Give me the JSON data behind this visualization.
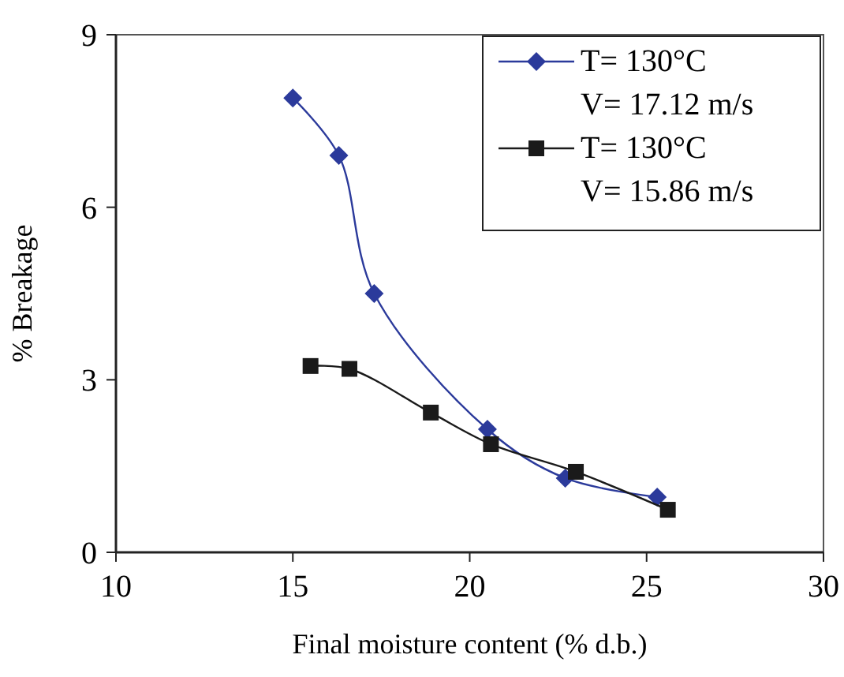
{
  "chart_data": {
    "type": "line",
    "xlabel": "Final moisture content (% d.b.)",
    "ylabel": "% Breakage",
    "xlim": [
      10,
      30
    ],
    "xticks": [
      10,
      15,
      20,
      25,
      30
    ],
    "ylim": [
      0,
      9
    ],
    "yticks": [
      0,
      3,
      6,
      9
    ],
    "grid": false,
    "legend": "top right",
    "line_style": "solid",
    "series": [
      {
        "name": "T= 130°C\nV= 17.12 m/s",
        "color": "#2b3a9b",
        "marker": "diamond",
        "x": [
          15.0,
          16.3,
          17.3,
          20.5,
          22.7,
          25.3
        ],
        "values": [
          7.9,
          6.9,
          4.5,
          2.14,
          1.29,
          0.96
        ]
      },
      {
        "name": "T= 130°C\nV= 15.86 m/s",
        "color": "#1a1a1a",
        "marker": "square",
        "x": [
          15.5,
          16.6,
          18.9,
          20.6,
          23.0,
          25.6
        ],
        "values": [
          3.24,
          3.19,
          2.43,
          1.88,
          1.4,
          0.74
        ]
      }
    ]
  }
}
